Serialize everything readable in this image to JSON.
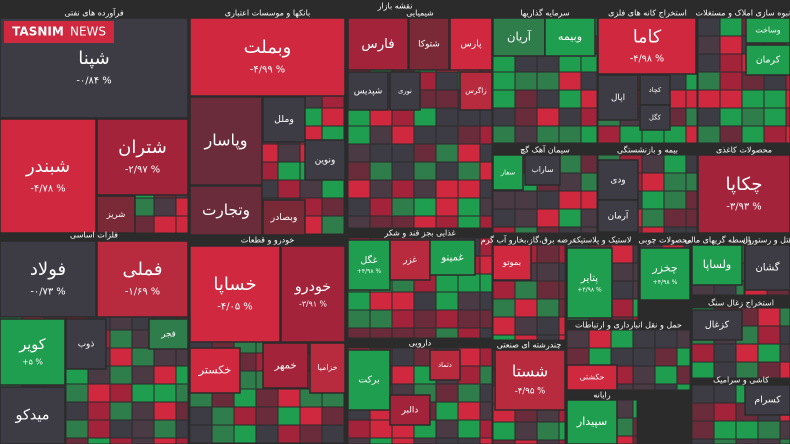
{
  "header": {
    "title": "نقشه بازار",
    "logo": "TASNIM",
    "logo_sub": "NEWS"
  },
  "sectors": [
    {
      "title": "فرآورده های نفتی",
      "tiles": [
        {
          "label": "شپنا",
          "change": "-۰/۸۴ %",
          "color": "#3d3b44"
        },
        {
          "label": "شبندر",
          "change": "-۴/۷۸ %",
          "color": "#d0283f"
        },
        {
          "label": "شتران",
          "change": "-۲/۹۷ %",
          "color": "#a3233a"
        },
        {
          "label": "شریز",
          "color": "#7a2a36"
        }
      ]
    },
    {
      "title": "فلزات اساسی",
      "tiles": [
        {
          "label": "فولاد",
          "change": "-۰/۷۳ %",
          "color": "#3d3b44"
        },
        {
          "label": "فملی",
          "change": "-۱/۶۹ %",
          "color": "#b82a3e"
        },
        {
          "label": "کویر",
          "change": "+۵ %",
          "color": "#1e9e4e"
        },
        {
          "label": "ذوب",
          "color": "#3d3b44"
        },
        {
          "label": "میدکو",
          "color": "#3d3b44"
        },
        {
          "label": "فجر",
          "color": "#2e7d4a"
        }
      ]
    },
    {
      "title": "بانکها و موسسات اعتباری",
      "tiles": [
        {
          "label": "وبملت",
          "change": "-۴/۹۹ %",
          "color": "#d0283f"
        },
        {
          "label": "وپاسار",
          "color": "#6a2c3a"
        },
        {
          "label": "وتجارت",
          "color": "#6a2c3a"
        },
        {
          "label": "وملل",
          "color": "#3d3b44"
        },
        {
          "label": "ونوین",
          "color": "#3d3b44"
        },
        {
          "label": "وبصادر",
          "color": "#7a2a36"
        }
      ]
    },
    {
      "title": "خودرو و قطعات",
      "tiles": [
        {
          "label": "خساپا",
          "change": "-۴/۰۵ %",
          "color": "#d0283f"
        },
        {
          "label": "خودرو",
          "change": "-۳/۹۱ %",
          "color": "#a3233a"
        },
        {
          "label": "خکستر",
          "color": "#d0283f"
        },
        {
          "label": "خمهر",
          "color": "#a3233a"
        },
        {
          "label": "خزامیا",
          "color": "#b82a3e"
        }
      ]
    },
    {
      "title": "شیمیایی",
      "tiles": [
        {
          "label": "فارس",
          "color": "#a3233a"
        },
        {
          "label": "شتوکا",
          "color": "#7a2a36"
        },
        {
          "label": "پارس",
          "color": "#d0283f"
        },
        {
          "label": "شپدیس",
          "color": "#3d3b44"
        },
        {
          "label": "نوری",
          "color": "#3d3b44"
        },
        {
          "label": "زاگرس",
          "color": "#b82a3e"
        }
      ]
    },
    {
      "title": "غذایی بجز قند و شکر",
      "tiles": [
        {
          "label": "غگل",
          "change": "+۴/۹۸ %",
          "color": "#1e9e4e"
        },
        {
          "label": "غزر",
          "color": "#b82a3e"
        },
        {
          "label": "غمینو",
          "color": "#1e9e4e"
        }
      ]
    },
    {
      "title": "دارویی",
      "tiles": [
        {
          "label": "برکت",
          "color": "#1e9e4e"
        },
        {
          "label": "دتماد",
          "color": "#b82a3e"
        },
        {
          "label": "دالبر",
          "color": "#a3233a"
        }
      ]
    },
    {
      "title": "سرمایه گذاریها",
      "tiles": [
        {
          "label": "آریان",
          "color": "#2e7d4a"
        },
        {
          "label": "وبیمه",
          "color": "#1e9e4e"
        }
      ]
    },
    {
      "title": "استخراج کانه های فلزی",
      "tiles": [
        {
          "label": "کاما",
          "change": "-۴/۹۸ %",
          "color": "#d0283f"
        },
        {
          "label": "اپال",
          "color": "#3d3b44"
        },
        {
          "label": "کچاد",
          "color": "#3d3b44"
        },
        {
          "label": "کگل",
          "color": "#3d3b44"
        }
      ]
    },
    {
      "title": "انبوه سازی املاک و مستغلات",
      "tiles": [
        {
          "label": "وساخت",
          "color": "#1e9e4e"
        },
        {
          "label": "کرمان",
          "color": "#1e9e4e"
        }
      ]
    },
    {
      "title": "محصولات کاغذی",
      "tiles": [
        {
          "label": "چکاپا",
          "change": "-۳/۹۳ %",
          "color": "#a3233a"
        }
      ]
    },
    {
      "title": "بیمه و بازنشستگی",
      "tiles": [
        {
          "label": "ودی",
          "color": "#3d3b44"
        },
        {
          "label": "آرمان",
          "color": "#3d3b44"
        }
      ]
    },
    {
      "title": "سیمان آهک گچ",
      "tiles": [
        {
          "label": "سفار",
          "color": "#1e9e4e"
        },
        {
          "label": "ساراب",
          "color": "#3d3b44"
        }
      ]
    },
    {
      "title": "عرضه برق،گاز،بخارو آب گرم",
      "tiles": [
        {
          "label": "بموتو",
          "color": "#d0283f"
        }
      ]
    },
    {
      "title": "لاستیک و پلاستیک",
      "tiles": [
        {
          "label": "پتایر",
          "change": "+۴/۹۸ %",
          "color": "#1e9e4e"
        }
      ]
    },
    {
      "title": "محصولات چوبی",
      "tiles": [
        {
          "label": "چخزر",
          "change": "+۴/۹۸ %",
          "color": "#1e9e4e"
        }
      ]
    },
    {
      "title": "واسطه گریهای مالی",
      "tiles": [
        {
          "label": "ولساپا",
          "color": "#1e9e4e"
        }
      ]
    },
    {
      "title": "هتل و رستوران",
      "tiles": [
        {
          "label": "گشان",
          "color": "#3d3b44"
        }
      ]
    },
    {
      "title": "چندرشته ای صنعتی",
      "tiles": [
        {
          "label": "شستا",
          "change": "-۴/۹۵ %",
          "color": "#b82a3e"
        }
      ]
    },
    {
      "title": "حمل و نقل انبارداری و ارتباطات",
      "tiles": [
        {
          "label": "حکشتی",
          "color": "#d0283f"
        }
      ]
    },
    {
      "title": "استخراج زغال سنگ",
      "tiles": [
        {
          "label": "کزغال",
          "color": "#3d3b44"
        }
      ]
    },
    {
      "title": "کاشی و سرامیک",
      "tiles": [
        {
          "label": "کسرام",
          "color": "#3d3b44"
        }
      ]
    },
    {
      "title": "رایانه",
      "tiles": [
        {
          "label": "سپیدار",
          "color": "#1e9e4e"
        }
      ]
    }
  ]
}
